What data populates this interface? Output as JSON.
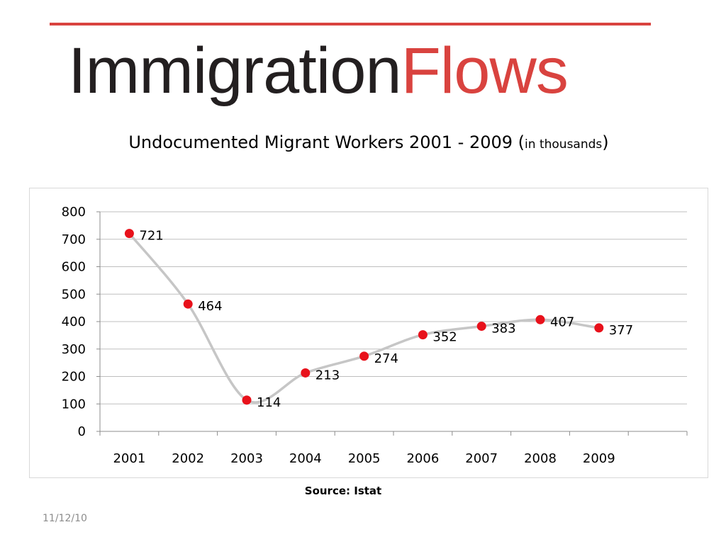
{
  "header": {
    "brand_part1": "Immigration",
    "brand_part2": "Flows",
    "accent_color": "#d9433f",
    "dark_color": "#231f20"
  },
  "chart_data": {
    "type": "line",
    "title": "Undocumented Migrant Workers 2001 - 2009 (",
    "title_unit": "in thousands",
    "title_close": ")",
    "categories": [
      "2001",
      "2002",
      "2003",
      "2004",
      "2005",
      "2006",
      "2007",
      "2008",
      "2009"
    ],
    "series": [
      {
        "values": [
          721,
          464,
          114,
          213,
          274,
          352,
          383,
          407,
          377
        ]
      }
    ],
    "ylim": [
      0,
      800
    ],
    "yticks": [
      0,
      100,
      200,
      300,
      400,
      500,
      600,
      700,
      800
    ],
    "grid": true,
    "legend": "none",
    "marker_color": "#e8111b",
    "line_color": "#c6c6c6"
  },
  "footer": {
    "source": "Source: Istat",
    "date": "11/12/10"
  }
}
